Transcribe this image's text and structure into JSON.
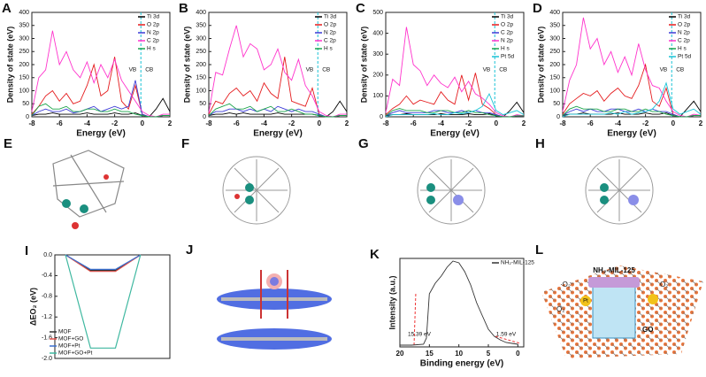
{
  "chart_data": [
    {
      "type": "line",
      "panel_label": "A",
      "xlabel": "Energy (eV)",
      "ylabel": "Density of state (eV)",
      "xlim": [
        -8,
        2
      ],
      "xticks": [
        -8,
        -6,
        -4,
        -2,
        0,
        2
      ],
      "ylim": [
        0,
        400
      ],
      "yticks": [
        0,
        50,
        100,
        150,
        200,
        250,
        300,
        350,
        400
      ],
      "legend": "upper right",
      "vline": -0.1,
      "annotations": [
        "VB",
        "CB"
      ],
      "x": [
        -8,
        -7.5,
        -7,
        -6.5,
        -6,
        -5.5,
        -5,
        -4.5,
        -4,
        -3.5,
        -3,
        -2.5,
        -2,
        -1.5,
        -1,
        -0.5,
        0,
        0.5,
        1,
        1.5,
        2
      ],
      "series": [
        {
          "name": "Ti 3d",
          "color": "#000000",
          "values": [
            5,
            10,
            10,
            15,
            10,
            10,
            10,
            10,
            15,
            10,
            10,
            10,
            15,
            10,
            10,
            15,
            5,
            0,
            30,
            70,
            20
          ]
        },
        {
          "name": "O 2p",
          "color": "#e41a1c",
          "values": [
            10,
            40,
            80,
            100,
            60,
            90,
            50,
            60,
            120,
            200,
            80,
            100,
            230,
            60,
            30,
            120,
            10,
            0,
            0,
            5,
            5
          ]
        },
        {
          "name": "N 2p",
          "color": "#3b3bd6",
          "values": [
            5,
            20,
            30,
            20,
            20,
            30,
            15,
            20,
            30,
            40,
            20,
            30,
            40,
            30,
            40,
            140,
            10,
            0,
            0,
            5,
            5
          ]
        },
        {
          "name": "C 2p",
          "color": "#ff33cc",
          "values": [
            20,
            150,
            180,
            330,
            200,
            250,
            180,
            150,
            210,
            130,
            200,
            150,
            220,
            140,
            100,
            60,
            20,
            5,
            0,
            10,
            10
          ]
        },
        {
          "name": "H s",
          "color": "#1aa34a",
          "values": [
            5,
            40,
            50,
            30,
            30,
            40,
            20,
            20,
            30,
            30,
            20,
            20,
            30,
            20,
            20,
            10,
            5,
            0,
            0,
            5,
            5
          ]
        }
      ]
    },
    {
      "type": "line",
      "panel_label": "B",
      "xlabel": "Energy (eV)",
      "ylabel": "Density of state (eV)",
      "xlim": [
        -8,
        2
      ],
      "xticks": [
        -8,
        -6,
        -4,
        -2,
        0,
        2
      ],
      "ylim": [
        0,
        400
      ],
      "yticks": [
        0,
        50,
        100,
        150,
        200,
        250,
        300,
        350,
        400
      ],
      "legend": "upper right",
      "vline": -0.1,
      "annotations": [
        "VB",
        "CB"
      ],
      "x": [
        -8,
        -7.5,
        -7,
        -6.5,
        -6,
        -5.5,
        -5,
        -4.5,
        -4,
        -3.5,
        -3,
        -2.5,
        -2,
        -1.5,
        -1,
        -0.5,
        0,
        0.5,
        1,
        1.5,
        2
      ],
      "series": [
        {
          "name": "Ti 3d",
          "color": "#000000",
          "values": [
            5,
            10,
            10,
            15,
            10,
            15,
            10,
            10,
            10,
            10,
            15,
            10,
            10,
            10,
            10,
            10,
            5,
            0,
            20,
            60,
            20
          ]
        },
        {
          "name": "O 2p",
          "color": "#e41a1c",
          "values": [
            10,
            60,
            50,
            90,
            110,
            80,
            100,
            60,
            130,
            90,
            70,
            230,
            60,
            50,
            40,
            110,
            10,
            0,
            0,
            5,
            5
          ]
        },
        {
          "name": "N 2p",
          "color": "#3b3bd6",
          "values": [
            5,
            20,
            20,
            30,
            30,
            20,
            30,
            20,
            30,
            20,
            40,
            30,
            20,
            30,
            20,
            20,
            10,
            0,
            0,
            5,
            5
          ]
        },
        {
          "name": "C 2p",
          "color": "#ff33cc",
          "values": [
            15,
            170,
            160,
            260,
            350,
            230,
            280,
            260,
            180,
            200,
            260,
            170,
            140,
            220,
            120,
            80,
            20,
            5,
            0,
            10,
            10
          ]
        },
        {
          "name": "H s",
          "color": "#1aa34a",
          "values": [
            5,
            30,
            40,
            50,
            30,
            30,
            40,
            20,
            30,
            40,
            20,
            20,
            30,
            20,
            10,
            10,
            5,
            0,
            0,
            5,
            5
          ]
        }
      ]
    },
    {
      "type": "line",
      "panel_label": "C",
      "xlabel": "Energy (eV)",
      "ylabel": "Density of state (eV)",
      "xlim": [
        -8,
        2
      ],
      "xticks": [
        -8,
        -6,
        -4,
        -2,
        0,
        2
      ],
      "ylim": [
        0,
        500
      ],
      "yticks": [
        0,
        100,
        200,
        300,
        400,
        500
      ],
      "legend": "upper right",
      "vline": -0.1,
      "annotations": [
        "VB",
        "CB"
      ],
      "x": [
        -8,
        -7.5,
        -7,
        -6.5,
        -6,
        -5.5,
        -5,
        -4.5,
        -4,
        -3.5,
        -3,
        -2.5,
        -2,
        -1.5,
        -1,
        -0.5,
        0,
        0.5,
        1,
        1.5,
        2
      ],
      "series": [
        {
          "name": "Ti 3d",
          "color": "#000000",
          "values": [
            5,
            10,
            10,
            15,
            10,
            10,
            10,
            10,
            15,
            10,
            10,
            10,
            15,
            10,
            10,
            15,
            5,
            0,
            30,
            70,
            20
          ]
        },
        {
          "name": "O 2p",
          "color": "#e41a1c",
          "values": [
            10,
            40,
            60,
            100,
            60,
            80,
            70,
            60,
            120,
            80,
            60,
            200,
            80,
            210,
            60,
            40,
            10,
            0,
            0,
            5,
            5
          ]
        },
        {
          "name": "C 2p",
          "color": "#3b3bd6",
          "values": [
            5,
            20,
            30,
            20,
            20,
            20,
            20,
            30,
            30,
            20,
            20,
            30,
            20,
            30,
            20,
            20,
            10,
            0,
            0,
            5,
            5
          ]
        },
        {
          "name": "N 2p",
          "color": "#ff33cc",
          "values": [
            20,
            180,
            150,
            430,
            250,
            220,
            150,
            200,
            160,
            140,
            190,
            120,
            170,
            110,
            90,
            60,
            20,
            5,
            0,
            10,
            5
          ]
        },
        {
          "name": "H s",
          "color": "#1aa34a",
          "values": [
            5,
            30,
            40,
            30,
            30,
            30,
            20,
            20,
            30,
            30,
            20,
            20,
            30,
            20,
            20,
            10,
            5,
            0,
            0,
            5,
            5
          ]
        },
        {
          "name": "Pt 5d",
          "color": "#19c3d6",
          "values": [
            0,
            10,
            10,
            10,
            10,
            10,
            10,
            15,
            10,
            10,
            20,
            15,
            20,
            30,
            50,
            110,
            30,
            10,
            20,
            30,
            10
          ]
        }
      ]
    },
    {
      "type": "line",
      "panel_label": "D",
      "xlabel": "Energy (eV)",
      "ylabel": "Density of state (eV)",
      "xlim": [
        -8,
        2
      ],
      "xticks": [
        -8,
        -6,
        -4,
        -2,
        0,
        2
      ],
      "ylim": [
        0,
        400
      ],
      "yticks": [
        0,
        50,
        100,
        150,
        200,
        250,
        300,
        350,
        400
      ],
      "legend": "upper right",
      "vline": -0.1,
      "annotations": [
        "VB",
        "CB"
      ],
      "x": [
        -8,
        -7.5,
        -7,
        -6.5,
        -6,
        -5.5,
        -5,
        -4.5,
        -4,
        -3.5,
        -3,
        -2.5,
        -2,
        -1.5,
        -1,
        -0.5,
        0,
        0.5,
        1,
        1.5,
        2
      ],
      "series": [
        {
          "name": "Ti 3d",
          "color": "#000000",
          "values": [
            5,
            10,
            10,
            15,
            10,
            10,
            10,
            10,
            15,
            10,
            10,
            10,
            15,
            10,
            10,
            15,
            5,
            0,
            30,
            60,
            20
          ]
        },
        {
          "name": "O 2p",
          "color": "#e41a1c",
          "values": [
            10,
            50,
            70,
            90,
            80,
            100,
            60,
            90,
            110,
            80,
            70,
            120,
            200,
            60,
            40,
            110,
            10,
            0,
            0,
            5,
            5
          ]
        },
        {
          "name": "N 2p",
          "color": "#3b3bd6",
          "values": [
            5,
            20,
            30,
            20,
            30,
            20,
            20,
            30,
            30,
            20,
            20,
            30,
            20,
            30,
            20,
            20,
            10,
            0,
            0,
            5,
            5
          ]
        },
        {
          "name": "C 2p",
          "color": "#ff33cc",
          "values": [
            20,
            140,
            200,
            380,
            260,
            300,
            200,
            250,
            170,
            230,
            160,
            280,
            180,
            120,
            110,
            60,
            20,
            5,
            0,
            10,
            5
          ]
        },
        {
          "name": "H s",
          "color": "#1aa34a",
          "values": [
            5,
            30,
            40,
            30,
            30,
            30,
            20,
            20,
            30,
            30,
            20,
            20,
            30,
            20,
            20,
            10,
            5,
            0,
            0,
            5,
            5
          ]
        },
        {
          "name": "Pt 5d",
          "color": "#19c3d6",
          "values": [
            0,
            10,
            10,
            10,
            10,
            10,
            10,
            15,
            10,
            20,
            10,
            15,
            20,
            30,
            60,
            130,
            30,
            10,
            20,
            30,
            10
          ]
        }
      ]
    },
    {
      "type": "line",
      "panel_label": "I",
      "ylabel": "ΔEO₂ (eV)",
      "categories": [
        null,
        null,
        null,
        null
      ],
      "ylim": [
        -2.0,
        0.0
      ],
      "yticks": [
        {
          "value": 0,
          "label": "0.0"
        },
        {
          "value": -0.4,
          "label": "-0.4"
        },
        {
          "value": -0.8,
          "label": "-0.8"
        },
        {
          "value": -1.2,
          "label": "-1.2"
        },
        {
          "value": -1.6,
          "label": "-1.6"
        },
        {
          "value": -2.0,
          "label": "-2.0"
        }
      ],
      "legend": "lower left",
      "series": [
        {
          "name": "MOF",
          "color": "#333333",
          "values": [
            0,
            -0.3,
            -0.3,
            0
          ]
        },
        {
          "name": "MOF+GO",
          "color": "#e0504a",
          "values": [
            0,
            -0.32,
            -0.32,
            0
          ]
        },
        {
          "name": "MOF+Pt",
          "color": "#3a6fd0",
          "values": [
            0,
            -0.28,
            -0.28,
            0
          ]
        },
        {
          "name": "MOF+GO+Pt",
          "color": "#3fb8a0",
          "values": [
            0,
            -1.8,
            -1.8,
            0
          ]
        }
      ]
    },
    {
      "type": "line",
      "panel_label": "K",
      "xlabel": "Binding energy (eV)",
      "ylabel": "Intensity (a.u.)",
      "xlim": [
        20,
        -1
      ],
      "xticks": [
        20,
        15,
        10,
        5,
        0
      ],
      "ylim": [
        0,
        1
      ],
      "legend": "upper right",
      "annotations": [
        "15.39 eV",
        "1.59 eV"
      ],
      "x": [
        20,
        18,
        16,
        15.5,
        15,
        14,
        13,
        12,
        11,
        10,
        9,
        8,
        7,
        6,
        5,
        4,
        3,
        2,
        1,
        0
      ],
      "series": [
        {
          "name": "NH₂-MIL-125",
          "color": "#333333",
          "values": [
            0.02,
            0.02,
            0.03,
            0.1,
            0.6,
            0.72,
            0.8,
            0.9,
            0.97,
            0.95,
            0.85,
            0.7,
            0.5,
            0.35,
            0.2,
            0.12,
            0.08,
            0.05,
            0.04,
            0.03
          ]
        }
      ]
    }
  ],
  "image_panels": [
    {
      "panel_label": "E"
    },
    {
      "panel_label": "F"
    },
    {
      "panel_label": "G"
    },
    {
      "panel_label": "H"
    },
    {
      "panel_label": "J"
    },
    {
      "panel_label": "L",
      "texts": [
        "NH₂-MIL-125",
        "·O₂⁻",
        "O₂",
        "Pt",
        "GO",
        "O₂"
      ]
    }
  ]
}
